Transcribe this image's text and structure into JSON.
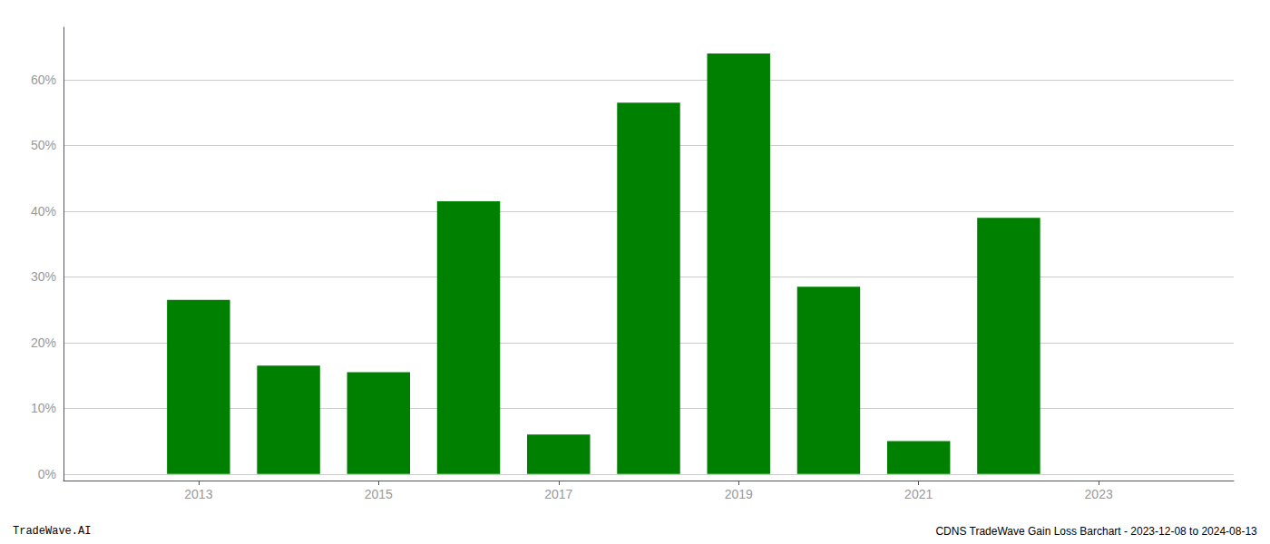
{
  "chart_data": {
    "type": "bar",
    "x": [
      2013,
      2014,
      2015,
      2016,
      2017,
      2018,
      2019,
      2020,
      2021,
      2022,
      2023
    ],
    "values": [
      26.5,
      16.5,
      15.5,
      41.5,
      6.0,
      56.5,
      64.0,
      28.5,
      5.0,
      39.0,
      0.0
    ],
    "color": "#008000",
    "xlim": [
      2011.5,
      2024.5
    ],
    "xticks": [
      2013,
      2015,
      2017,
      2019,
      2021,
      2023
    ],
    "ylim": [
      -1,
      68
    ],
    "yticks": [
      {
        "value": 0,
        "label": "0%"
      },
      {
        "value": 10,
        "label": "10%"
      },
      {
        "value": 20,
        "label": "20%"
      },
      {
        "value": 30,
        "label": "30%"
      },
      {
        "value": 40,
        "label": "40%"
      },
      {
        "value": 50,
        "label": "50%"
      },
      {
        "value": 60,
        "label": "60%"
      }
    ],
    "grid": true,
    "annotations": [
      "TradeWave.AI",
      "CDNS TradeWave Gain Loss Barchart - 2023-12-08 to 2024-08-13"
    ]
  }
}
